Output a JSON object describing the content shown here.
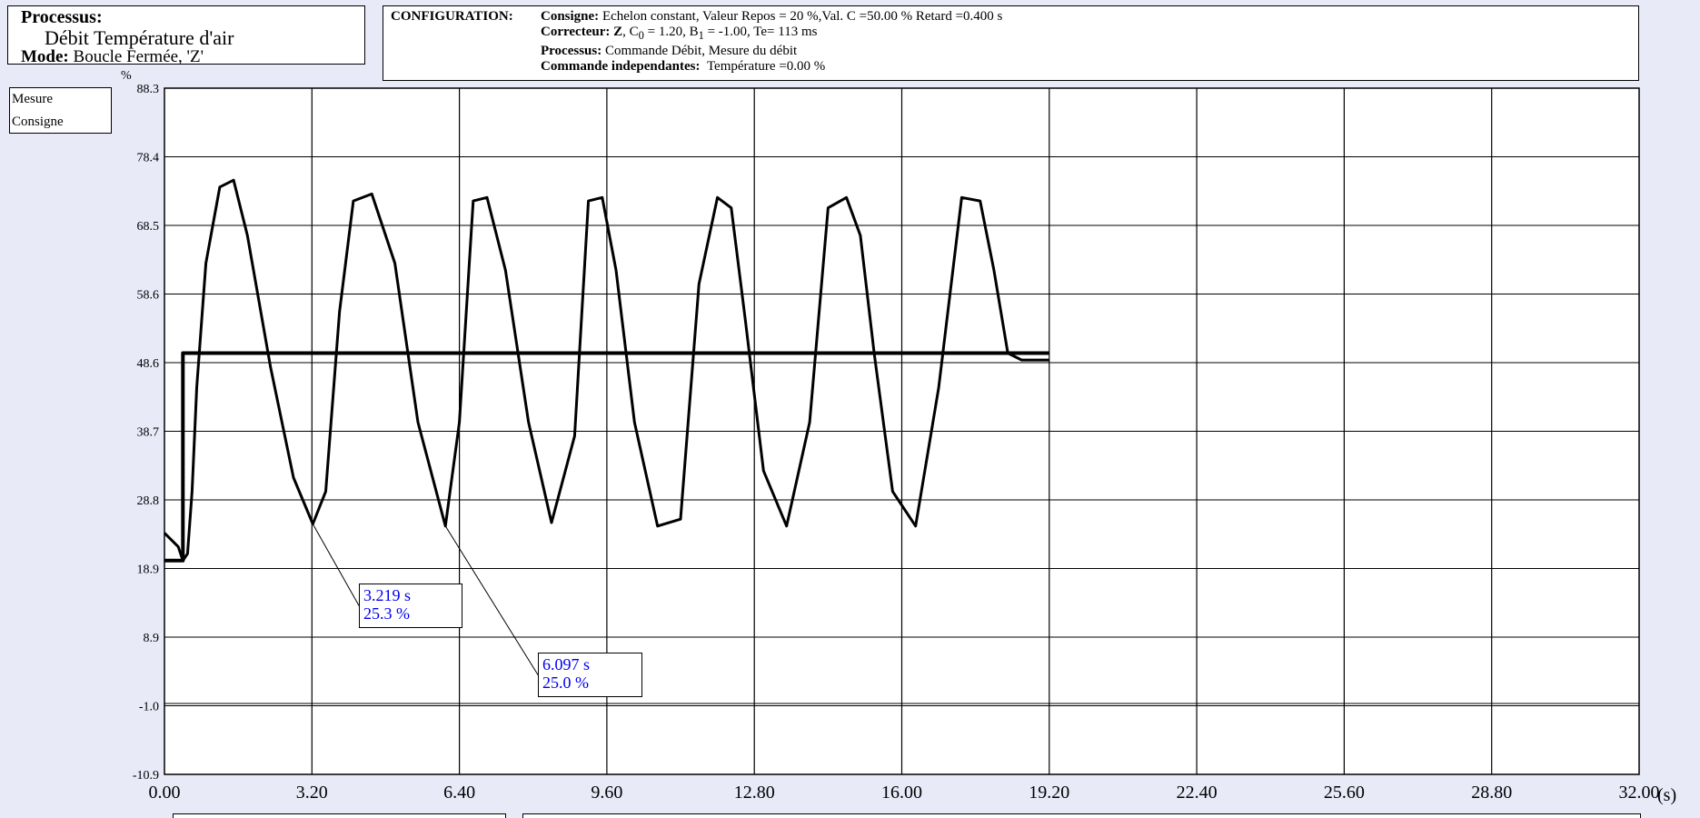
{
  "process": {
    "label": "Processus:",
    "name": "Débit Température d'air",
    "mode_label": "Mode:",
    "mode_value": "Boucle Fermée, 'Z'"
  },
  "config": {
    "heading": "CONFIGURATION:",
    "consigne_label": "Consigne:",
    "consigne_value": "Echelon constant, Valeur Repos = 20 %,Val. C =50.00 % Retard =0.400 s",
    "correcteur_label": "Correcteur:",
    "correcteur_z": "Z",
    "c0_label": ", C",
    "c0_sub": "0",
    "c0_value": " = 1.20, B",
    "b1_sub": "1",
    "b1_value": " = -1.00, Te= 113 ms",
    "processus_label": "Processus:",
    "processus_value": "Commande Débit, Mesure du débit",
    "commande_label": "Commande independantes:",
    "commande_value": "Température =0.00 %"
  },
  "legend": {
    "mesure": "Mesure",
    "consigne": "Consigne"
  },
  "chart_data": {
    "type": "line",
    "ylabel": "%",
    "xunit": "(s)",
    "xlim": [
      0,
      32
    ],
    "ylim": [
      -10.9,
      88.3
    ],
    "xticks": [
      "0.00",
      "3.20",
      "6.40",
      "9.60",
      "12.80",
      "16.00",
      "19.20",
      "22.40",
      "25.60",
      "28.80",
      "32.00"
    ],
    "yticks": [
      "88.3",
      "78.4",
      "68.5",
      "58.6",
      "48.6",
      "38.7",
      "28.8",
      "18.9",
      "8.9",
      "-1.0",
      "-10.9"
    ],
    "grid": true,
    "series": [
      {
        "name": "Mesure",
        "color": "#000000",
        "x": [
          0,
          0.3,
          0.4,
          0.5,
          0.6,
          0.7,
          0.9,
          1.2,
          1.5,
          1.8,
          2.3,
          2.8,
          3.219,
          3.5,
          3.8,
          4.1,
          4.5,
          5.0,
          5.5,
          6.097,
          6.4,
          6.7,
          7.0,
          7.4,
          7.9,
          8.4,
          8.9,
          9.2,
          9.5,
          9.8,
          10.2,
          10.7,
          11.2,
          11.6,
          12.0,
          12.3,
          12.6,
          13.0,
          13.5,
          14.0,
          14.4,
          14.8,
          15.1,
          15.4,
          15.8,
          16.3,
          16.8,
          17.3,
          17.7,
          18.0,
          18.3,
          18.6,
          19.0,
          19.2
        ],
        "y": [
          24,
          22,
          20,
          21,
          30,
          45,
          63,
          74,
          75,
          67,
          48,
          32,
          25.3,
          30,
          56,
          72,
          73,
          63,
          40,
          25.0,
          40,
          72,
          72.5,
          62,
          40,
          25.5,
          38,
          72,
          72.5,
          62,
          40,
          25,
          26,
          60,
          72.5,
          71,
          55,
          33,
          25,
          40,
          71,
          72.5,
          67,
          50,
          30,
          25,
          45,
          72.5,
          72,
          62,
          50,
          49,
          49,
          49
        ]
      },
      {
        "name": "Consigne",
        "color": "#000000",
        "x": [
          0,
          0.4,
          0.4,
          19.2
        ],
        "y": [
          20,
          20,
          50,
          50
        ]
      }
    ],
    "annotations": [
      {
        "x": 3.219,
        "y": 25.3,
        "time": "3.219 s",
        "value": "25.3 %"
      },
      {
        "x": 6.097,
        "y": 25.0,
        "time": "6.097 s",
        "value": "25.0 %"
      }
    ]
  }
}
